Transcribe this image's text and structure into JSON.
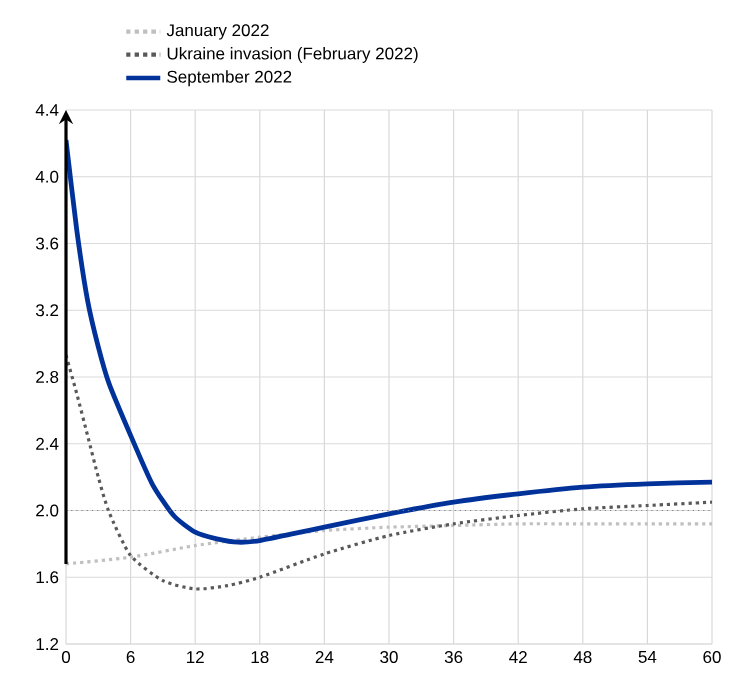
{
  "chart_data": {
    "type": "line",
    "x": [
      0,
      1,
      2,
      3,
      4,
      6,
      8,
      10,
      12,
      14,
      16,
      18,
      21,
      24,
      30,
      36,
      42,
      48,
      54,
      60
    ],
    "series": [
      {
        "name": "January 2022",
        "color": "#c0c0c0",
        "line_style": "dotted",
        "x": [
          0,
          6,
          12,
          18,
          24,
          30,
          36,
          42,
          48,
          54,
          60
        ],
        "values": [
          1.68,
          1.72,
          1.79,
          1.84,
          1.88,
          1.9,
          1.91,
          1.92,
          1.92,
          1.92,
          1.92
        ]
      },
      {
        "name": "Ukraine invasion (February 2022)",
        "color": "#595959",
        "line_style": "dotted",
        "x": [
          0,
          1,
          2,
          3,
          4,
          6,
          9,
          12,
          15,
          18,
          24,
          30,
          36,
          42,
          48,
          54,
          60
        ],
        "values": [
          2.93,
          2.7,
          2.45,
          2.2,
          1.99,
          1.73,
          1.58,
          1.53,
          1.55,
          1.6,
          1.74,
          1.85,
          1.92,
          1.97,
          2.01,
          2.03,
          2.05
        ]
      },
      {
        "name": "September 2022",
        "color": "#003299",
        "line_style": "solid",
        "values": [
          4.22,
          3.68,
          3.26,
          2.98,
          2.76,
          2.45,
          2.16,
          1.97,
          1.87,
          1.83,
          1.81,
          1.82,
          1.86,
          1.9,
          1.98,
          2.05,
          2.1,
          2.14,
          2.16,
          2.17
        ]
      }
    ],
    "xlim": [
      0,
      60
    ],
    "xticks": [
      0,
      6,
      12,
      18,
      24,
      30,
      36,
      42,
      48,
      54,
      60
    ],
    "ylim": [
      1.2,
      4.4
    ],
    "yticks": [
      1.2,
      1.6,
      {
        "value": 2,
        "label": "2.0"
      },
      2.4,
      2.8,
      3.2,
      3.6,
      {
        "value": 4,
        "label": "4.0"
      },
      4.4
    ],
    "ref_lines": [
      {
        "axis": "y",
        "value": 2,
        "color": "#7f7f7f",
        "line_style": "dotted"
      }
    ],
    "grid": true,
    "legend": "top left",
    "marker": "none"
  }
}
